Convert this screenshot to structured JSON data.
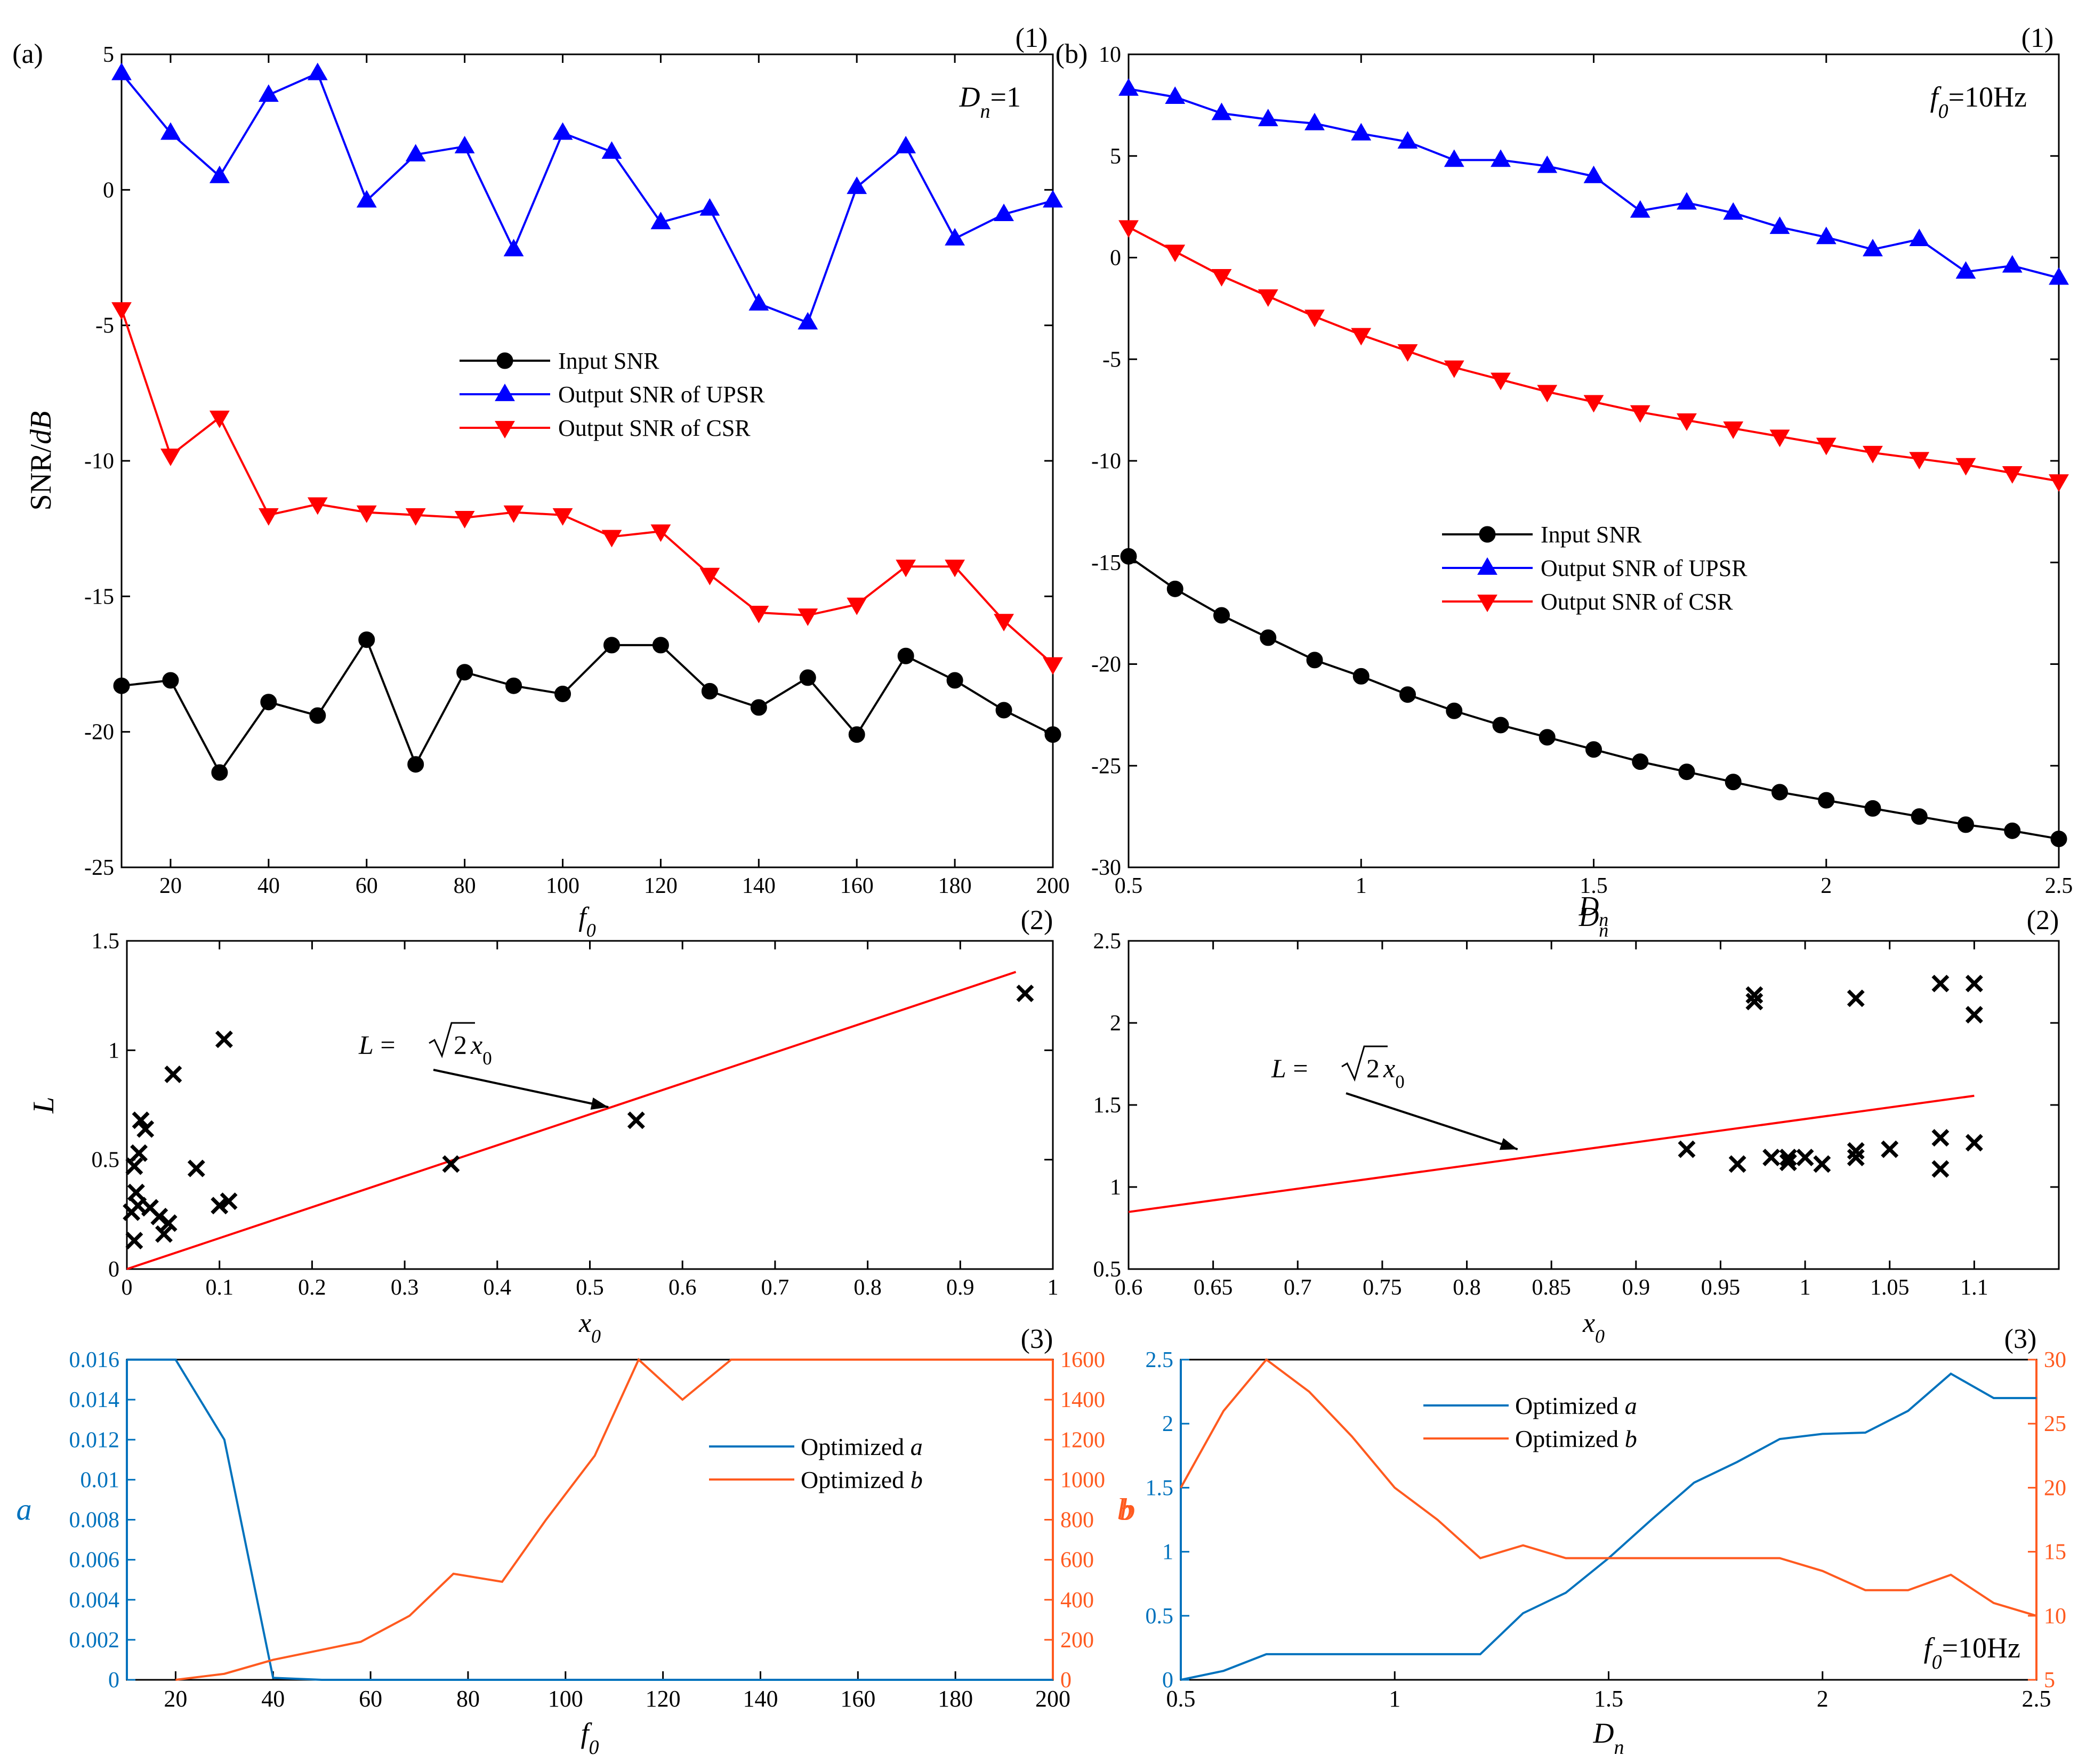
{
  "colors": {
    "black": "#000000",
    "blue": "#0000ff",
    "red": "#ff0000",
    "mblue": "#0072bd",
    "morange": "#ff5a1f"
  },
  "icon_names": [
    "circle-marker-icon",
    "triangle-up-marker-icon",
    "triangle-down-marker-icon",
    "cross-marker-icon"
  ],
  "chart_data": [
    {
      "id": "a1",
      "type": "line",
      "panel_label": "(a)",
      "number_label": "(1)",
      "annotation": {
        "text": "D",
        "sub": "n",
        "rest": "=1"
      },
      "xlabel": "f",
      "xlabel_sub": "0",
      "ylabel": "SNR/",
      "ylabel_italic": "dB",
      "xlim": [
        10,
        200
      ],
      "ylim": [
        -25,
        5
      ],
      "xticks": [
        20,
        40,
        60,
        80,
        100,
        120,
        140,
        160,
        180,
        200
      ],
      "xtick_labels": [
        "20",
        "40",
        "60",
        "80",
        "100",
        "120",
        "140",
        "160",
        "180",
        "200"
      ],
      "yticks": [
        -25,
        -20,
        -15,
        -10,
        -5,
        0,
        5
      ],
      "ytick_labels": [
        "-25",
        "-20",
        "-15",
        "-10",
        "-5",
        "0",
        "5"
      ],
      "x": [
        10,
        20,
        30,
        40,
        50,
        60,
        70,
        80,
        90,
        100,
        110,
        120,
        130,
        140,
        150,
        160,
        170,
        180,
        190,
        200
      ],
      "series": [
        {
          "name": "Input SNR",
          "color": "black",
          "marker": "circle",
          "values": [
            -18.3,
            -18.1,
            -21.5,
            -18.9,
            -19.4,
            -16.6,
            -21.2,
            -17.8,
            -18.3,
            -18.6,
            -16.8,
            -16.8,
            -18.5,
            -19.1,
            -18.0,
            -20.1,
            -17.2,
            -18.1,
            -19.2,
            -20.1
          ]
        },
        {
          "name": "Output SNR of UPSR",
          "color": "blue",
          "marker": "tri-up",
          "values": [
            4.3,
            2.1,
            0.5,
            3.5,
            4.3,
            -0.4,
            1.3,
            1.6,
            -2.2,
            2.1,
            1.4,
            -1.2,
            -0.7,
            -4.2,
            -4.9,
            0.1,
            1.6,
            -1.8,
            -0.9,
            -0.4
          ]
        },
        {
          "name": "Output SNR of CSR",
          "color": "red",
          "marker": "tri-down",
          "values": [
            -4.4,
            -9.8,
            -8.4,
            -12.0,
            -11.6,
            -11.9,
            -12.0,
            -12.1,
            -11.9,
            -12.0,
            -12.8,
            -12.6,
            -14.2,
            -15.6,
            -15.7,
            -15.3,
            -13.9,
            -13.9,
            -15.9,
            -17.5
          ]
        }
      ]
    },
    {
      "id": "b1",
      "type": "line",
      "panel_label": "(b)",
      "number_label": "(1)",
      "annotation": {
        "text": "f",
        "sub": "0",
        "rest": "=10Hz"
      },
      "xlabel": "D",
      "xlabel_sub": "n",
      "xlim": [
        0.5,
        2.5
      ],
      "ylim": [
        -30,
        10
      ],
      "xticks": [
        0.5,
        1,
        1.5,
        2,
        2.5
      ],
      "xtick_labels": [
        "0.5",
        "1",
        "1.5",
        "2",
        "2.5"
      ],
      "yticks": [
        -30,
        -25,
        -20,
        -15,
        -10,
        -5,
        0,
        5,
        10
      ],
      "ytick_labels": [
        "-30",
        "-25",
        "-20",
        "-15",
        "-10",
        "-5",
        "0",
        "5",
        "10"
      ],
      "x": [
        0.5,
        0.6,
        0.7,
        0.8,
        0.9,
        1.0,
        1.1,
        1.2,
        1.3,
        1.4,
        1.5,
        1.6,
        1.7,
        1.8,
        1.9,
        2.0,
        2.1,
        2.2,
        2.3,
        2.4,
        2.5
      ],
      "series": [
        {
          "name": "Input SNR",
          "color": "black",
          "marker": "circle",
          "values": [
            -14.7,
            -16.3,
            -17.6,
            -18.7,
            -19.8,
            -20.6,
            -21.5,
            -22.3,
            -23.0,
            -23.6,
            -24.2,
            -24.8,
            -25.3,
            -25.8,
            -26.3,
            -26.7,
            -27.1,
            -27.5,
            -27.9,
            -28.2,
            -28.6
          ]
        },
        {
          "name": "Output SNR of UPSR",
          "color": "blue",
          "marker": "tri-up",
          "values": [
            8.3,
            7.9,
            7.1,
            6.8,
            6.6,
            6.1,
            5.7,
            4.8,
            4.8,
            4.5,
            4.0,
            2.3,
            2.7,
            2.2,
            1.5,
            1.0,
            0.4,
            0.9,
            -0.7,
            -0.4,
            -1.0
          ]
        },
        {
          "name": "Output SNR of CSR",
          "color": "red",
          "marker": "tri-down",
          "values": [
            1.5,
            0.3,
            -0.9,
            -1.9,
            -2.9,
            -3.8,
            -4.6,
            -5.4,
            -6.0,
            -6.6,
            -7.1,
            -7.6,
            -8.0,
            -8.4,
            -8.8,
            -9.2,
            -9.6,
            -9.9,
            -10.2,
            -10.6,
            -11.0
          ]
        }
      ]
    },
    {
      "id": "a2",
      "type": "scatter",
      "number_label": "(2)",
      "xlabel": "x",
      "xlabel_sub": "0",
      "ylabel": "L",
      "xlim": [
        0,
        1
      ],
      "ylim": [
        0,
        1.5
      ],
      "xticks": [
        0,
        0.1,
        0.2,
        0.3,
        0.4,
        0.5,
        0.6,
        0.7,
        0.8,
        0.9,
        1
      ],
      "xtick_labels": [
        "0",
        "0.1",
        "0.2",
        "0.3",
        "0.4",
        "0.5",
        "0.6",
        "0.7",
        "0.8",
        "0.9",
        "1"
      ],
      "yticks": [
        0,
        0.5,
        1,
        1.5
      ],
      "ytick_labels": [
        "0",
        "0.5",
        "1",
        "1.5"
      ],
      "points": [
        [
          0.005,
          0.26
        ],
        [
          0.008,
          0.47
        ],
        [
          0.008,
          0.13
        ],
        [
          0.01,
          0.35
        ],
        [
          0.012,
          0.29
        ],
        [
          0.013,
          0.53
        ],
        [
          0.015,
          0.68
        ],
        [
          0.02,
          0.64
        ],
        [
          0.025,
          0.28
        ],
        [
          0.035,
          0.24
        ],
        [
          0.04,
          0.16
        ],
        [
          0.045,
          0.21
        ],
        [
          0.05,
          0.89
        ],
        [
          0.075,
          0.46
        ],
        [
          0.1,
          0.29
        ],
        [
          0.105,
          1.05
        ],
        [
          0.11,
          0.31
        ],
        [
          0.35,
          0.48
        ],
        [
          0.55,
          0.68
        ],
        [
          0.97,
          1.26
        ]
      ],
      "line": {
        "name": "L = √2x0",
        "color": "red",
        "x": [
          0,
          0.96
        ],
        "y": [
          0,
          1.358
        ]
      },
      "annotation": {
        "label": "L",
        "eq": " = ",
        "root": "2",
        "var": "x",
        "var_sub": "0",
        "target": [
          0.52,
          0.74
        ]
      }
    },
    {
      "id": "b2",
      "type": "scatter",
      "number_label": "(2)",
      "xlabel": "x",
      "xlabel_sub": "0",
      "xlim": [
        0.6,
        1.15
      ],
      "ylim": [
        0.5,
        2.5
      ],
      "xticks": [
        0.6,
        0.65,
        0.7,
        0.75,
        0.8,
        0.85,
        0.9,
        0.95,
        1,
        1.05,
        1.1
      ],
      "xtick_labels": [
        "0.6",
        "0.65",
        "0.7",
        "0.75",
        "0.8",
        "0.85",
        "0.9",
        "0.95",
        "1",
        "1.05",
        "1.1"
      ],
      "yticks": [
        0.5,
        1,
        1.5,
        2,
        2.5
      ],
      "ytick_labels": [
        "0.5",
        "1",
        "1.5",
        "2",
        "2.5"
      ],
      "points": [
        [
          0.93,
          1.23
        ],
        [
          0.96,
          1.14
        ],
        [
          0.97,
          2.17
        ],
        [
          0.97,
          2.13
        ],
        [
          0.98,
          1.18
        ],
        [
          0.99,
          1.15
        ],
        [
          0.99,
          1.18
        ],
        [
          1.0,
          1.18
        ],
        [
          1.01,
          1.14
        ],
        [
          1.03,
          1.18
        ],
        [
          1.03,
          1.22
        ],
        [
          1.03,
          2.15
        ],
        [
          1.05,
          1.23
        ],
        [
          1.08,
          2.24
        ],
        [
          1.08,
          1.3
        ],
        [
          1.08,
          1.11
        ],
        [
          1.1,
          2.24
        ],
        [
          1.1,
          2.05
        ],
        [
          1.1,
          1.27
        ]
      ],
      "line": {
        "name": "L = √2x0",
        "color": "red",
        "x": [
          0.6,
          1.1
        ],
        "y": [
          0.848,
          1.556
        ]
      },
      "annotation": {
        "label": "L",
        "eq": " = ",
        "root": "2",
        "var": "x",
        "var_sub": "0",
        "target": [
          0.83,
          1.23
        ]
      }
    },
    {
      "id": "a3",
      "type": "line",
      "number_label": "(3)",
      "xlabel": "f",
      "xlabel_sub": "0",
      "ylabel_left": "a",
      "ylabel_right": "b",
      "xlim": [
        10,
        200
      ],
      "ylim_left": [
        0,
        0.016
      ],
      "ylim_right": [
        0,
        1600
      ],
      "xticks": [
        20,
        40,
        60,
        80,
        100,
        120,
        140,
        160,
        180,
        200
      ],
      "xtick_labels": [
        "20",
        "40",
        "60",
        "80",
        "100",
        "120",
        "140",
        "160",
        "180",
        "200"
      ],
      "yticks_left": [
        0,
        0.002,
        0.004,
        0.006,
        0.008,
        0.01,
        0.012,
        0.014,
        0.016
      ],
      "ytick_labels_left": [
        "0",
        "0.002",
        "0.004",
        "0.006",
        "0.008",
        "0.01",
        "0.012",
        "0.014",
        "0.016"
      ],
      "yticks_right": [
        0,
        200,
        400,
        600,
        800,
        1000,
        1200,
        1400,
        1600
      ],
      "ytick_labels_right": [
        "0",
        "200",
        "400",
        "600",
        "800",
        "1000",
        "1200",
        "1400",
        "1600"
      ],
      "series": [
        {
          "name": "Optimized ",
          "sym": "a",
          "color": "mblue",
          "axis": "left",
          "x": [
            10,
            20,
            30,
            40,
            50,
            60,
            70,
            80,
            90,
            100,
            110,
            120,
            130,
            140,
            150,
            160,
            170,
            180,
            190,
            200
          ],
          "values": [
            0.016,
            0.016,
            0.012,
            0.0001,
            0,
            0,
            0,
            0,
            0,
            0,
            0,
            0,
            0,
            0,
            0,
            0,
            0,
            0,
            0,
            0
          ]
        },
        {
          "name": "Optimized ",
          "sym": "b",
          "color": "morange",
          "axis": "right",
          "x": [
            20,
            30,
            40,
            50,
            58,
            68,
            77,
            87,
            96,
            106,
            115,
            124,
            134,
            144,
            154,
            163,
            173,
            182,
            192,
            200
          ],
          "values": [
            0,
            30,
            100,
            150,
            190,
            320,
            530,
            490,
            800,
            1120,
            1600,
            1400,
            1600,
            1600,
            1600,
            1600,
            1600,
            1600,
            1600,
            1600
          ]
        }
      ]
    },
    {
      "id": "b3",
      "type": "line",
      "number_label": "(3)",
      "annotation": {
        "text": "f",
        "sub": "0",
        "rest": "=10Hz"
      },
      "xlabel": "D",
      "xlabel_sub": "n",
      "ylabel_left": "",
      "ylabel_right": "b",
      "xlim": [
        0.5,
        2.5
      ],
      "ylim_left": [
        0,
        2.5
      ],
      "ylim_right": [
        5,
        30
      ],
      "xticks": [
        0.5,
        1,
        1.5,
        2,
        2.5
      ],
      "xtick_labels": [
        "0.5",
        "1",
        "1.5",
        "2",
        "2.5"
      ],
      "yticks_left": [
        0,
        0.5,
        1,
        1.5,
        2,
        2.5
      ],
      "ytick_labels_left": [
        "0",
        "0.5",
        "1",
        "1.5",
        "2",
        "2.5"
      ],
      "yticks_right": [
        5,
        10,
        15,
        20,
        25,
        30
      ],
      "ytick_labels_right": [
        "5",
        "10",
        "15",
        "20",
        "25",
        "30"
      ],
      "series": [
        {
          "name": "Optimized ",
          "sym": "a",
          "color": "mblue",
          "axis": "left",
          "x": [
            0.5,
            0.6,
            0.7,
            0.8,
            0.9,
            1.0,
            1.1,
            1.2,
            1.3,
            1.4,
            1.5,
            1.6,
            1.7,
            1.8,
            1.9,
            2.0,
            2.1,
            2.2,
            2.3,
            2.4,
            2.5
          ],
          "values": [
            0,
            0.07,
            0.2,
            0.2,
            0.2,
            0.2,
            0.2,
            0.2,
            0.52,
            0.68,
            0.95,
            1.25,
            1.54,
            1.7,
            1.88,
            1.92,
            1.93,
            2.1,
            2.39,
            2.2,
            2.2
          ]
        },
        {
          "name": "Optimized ",
          "sym": "b",
          "color": "morange",
          "axis": "right",
          "x": [
            0.5,
            0.6,
            0.7,
            0.8,
            0.9,
            1.0,
            1.1,
            1.2,
            1.3,
            1.4,
            1.5,
            1.6,
            1.7,
            1.8,
            1.9,
            2.0,
            2.1,
            2.2,
            2.3,
            2.4,
            2.5
          ],
          "values": [
            20,
            26,
            30,
            27.5,
            24,
            20,
            17.5,
            14.5,
            15.5,
            14.5,
            14.5,
            14.5,
            14.5,
            14.5,
            14.5,
            13.5,
            12,
            12,
            13.2,
            11,
            10
          ]
        }
      ]
    }
  ]
}
